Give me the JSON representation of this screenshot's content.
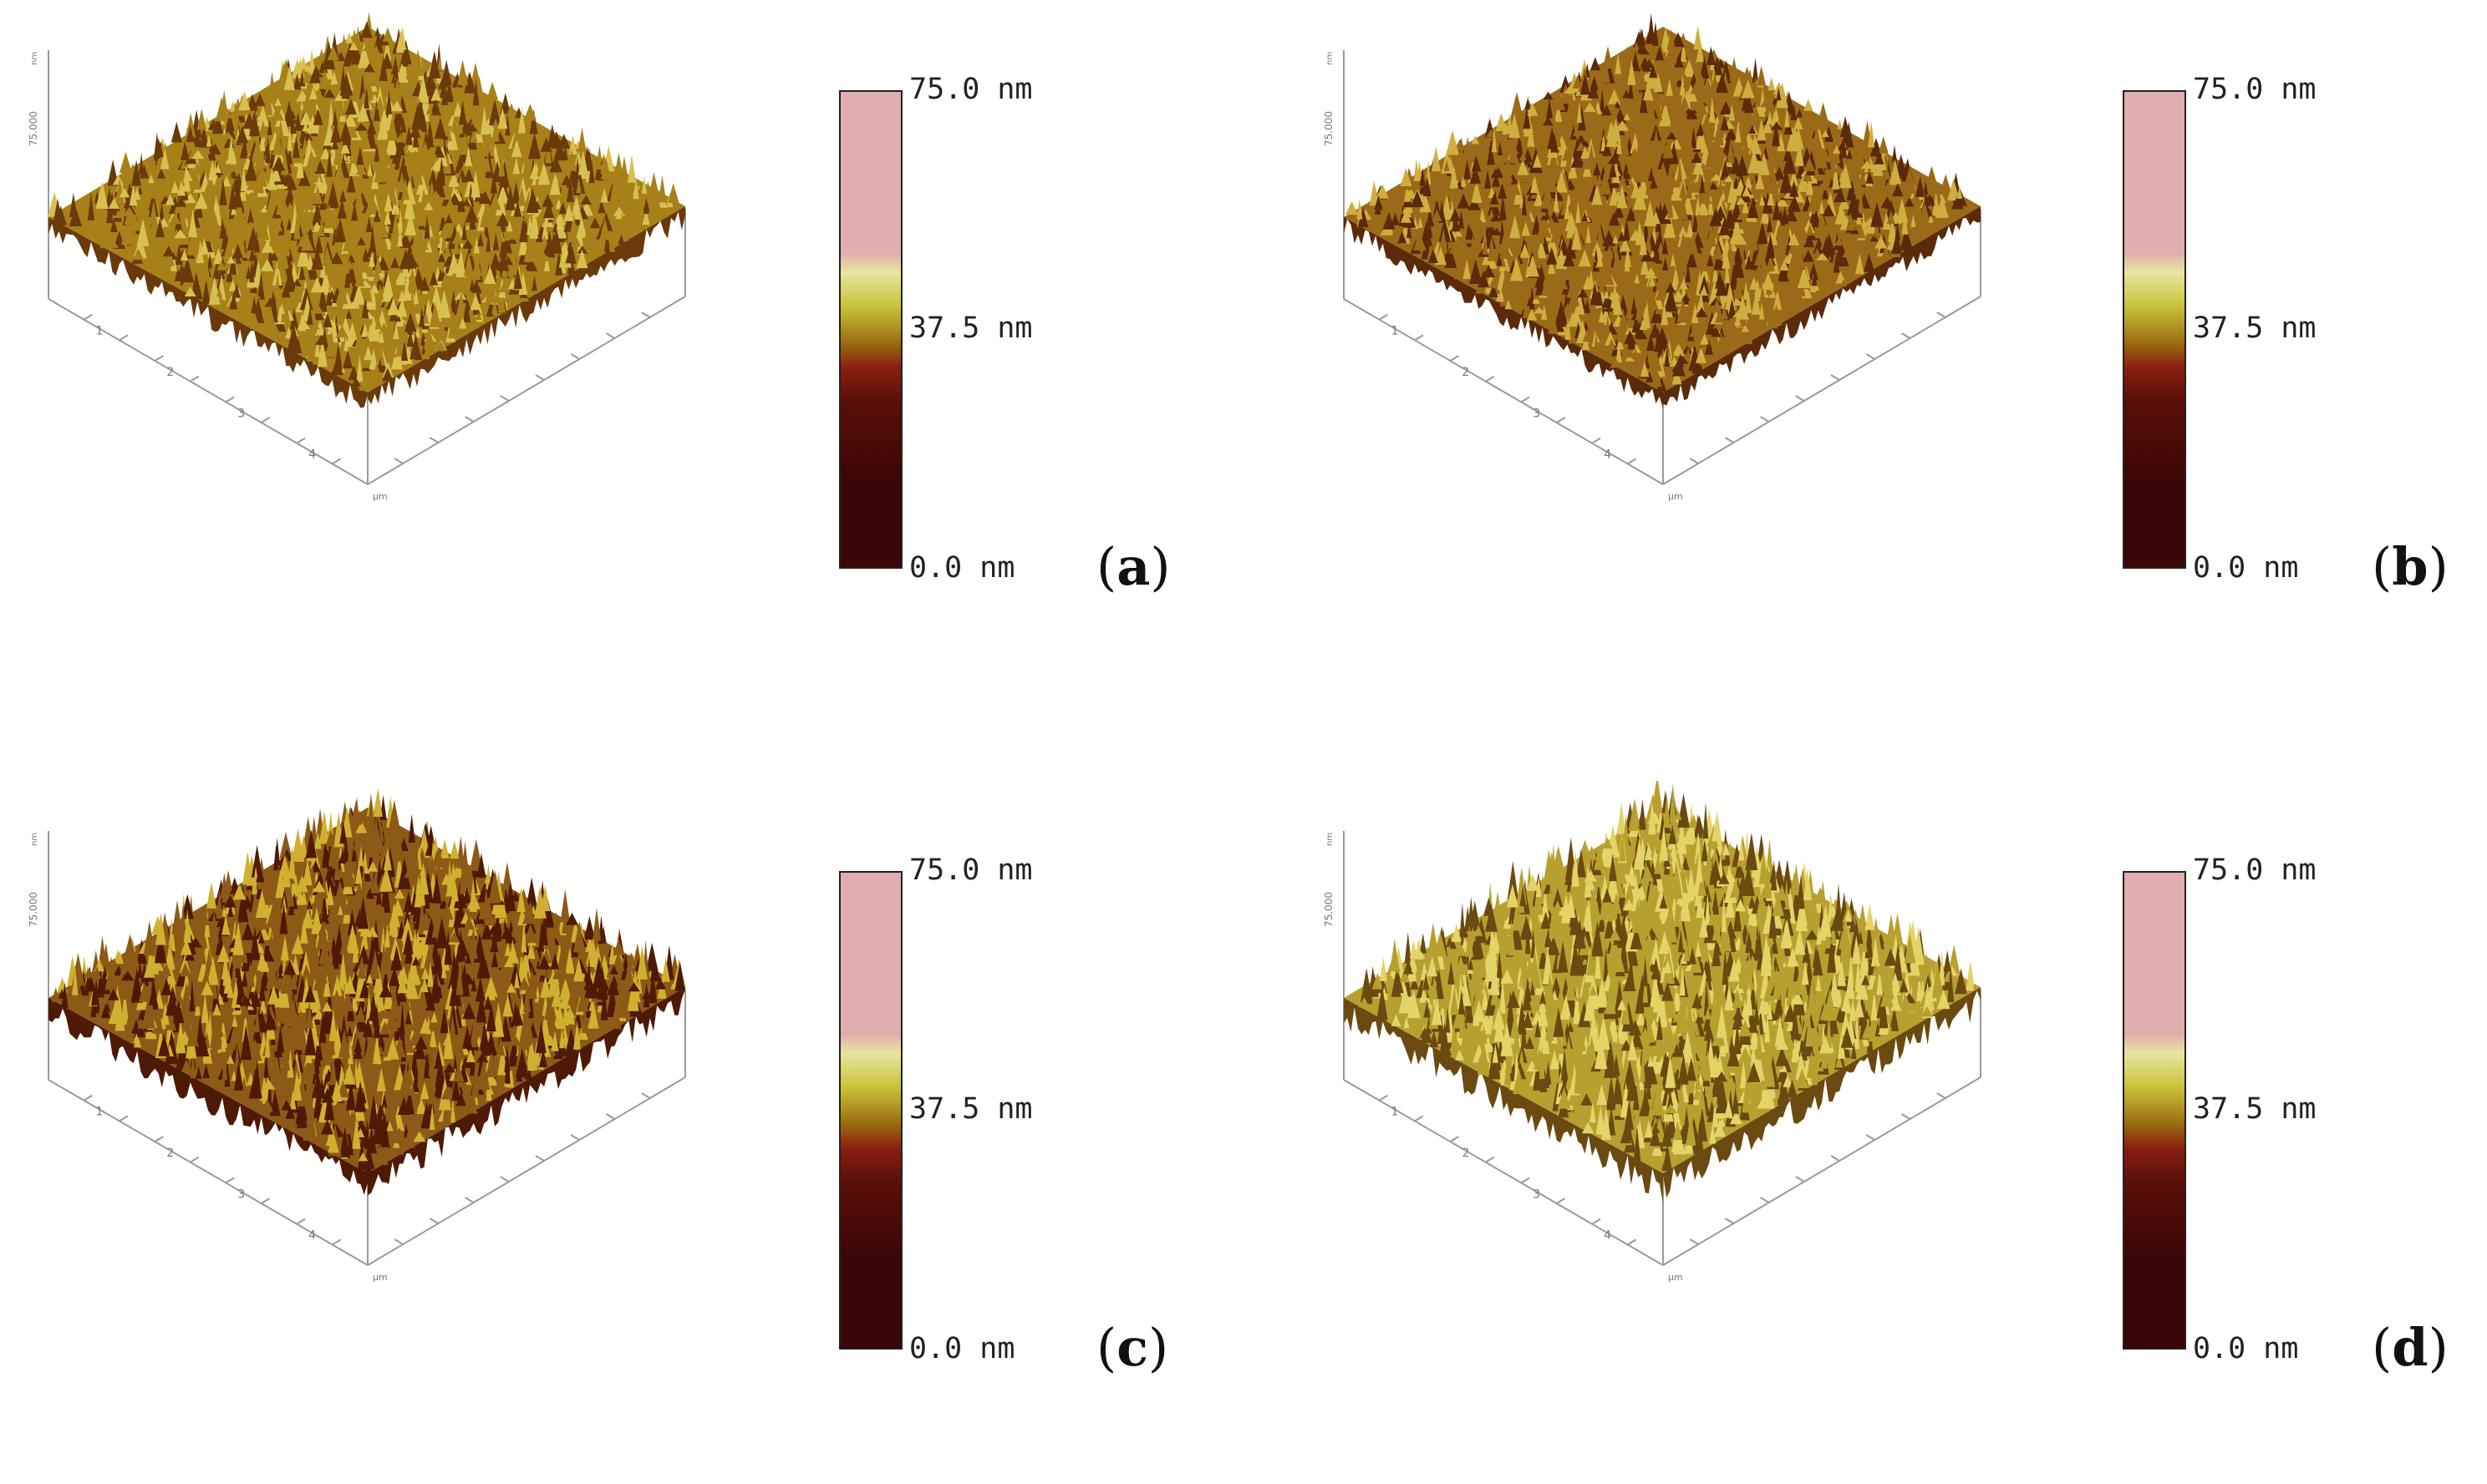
{
  "colorscale": {
    "stops": [
      "#3a0505",
      "#3a0505",
      "#5a0f0a",
      "#8a1f10",
      "#9a6a10",
      "#c9c43a",
      "#e8e6a0",
      "#e0aeae",
      "#e0aeae"
    ],
    "labels": {
      "max": "75.0 nm",
      "mid": "37.5 nm",
      "min": "0.0 nm"
    }
  },
  "axes": {
    "z_label": "75.000",
    "z_unit": "nm",
    "xy_unit": "µm",
    "ticks": [
      "1",
      "2",
      "3",
      "4"
    ]
  },
  "panels": [
    {
      "id": "a",
      "label": "a",
      "surface_color": "#a8801a",
      "shadow_color": "#6a3a0a",
      "highlight_color": "#d8c050",
      "roughness": 0.55
    },
    {
      "id": "b",
      "label": "b",
      "surface_color": "#9a6a18",
      "shadow_color": "#5a2a0a",
      "highlight_color": "#cfae40",
      "roughness": 0.45
    },
    {
      "id": "c",
      "label": "c",
      "surface_color": "#8c5a16",
      "shadow_color": "#4e1a06",
      "highlight_color": "#d0b030",
      "roughness": 0.85
    },
    {
      "id": "d",
      "label": "d",
      "surface_color": "#b8a030",
      "shadow_color": "#6a4a10",
      "highlight_color": "#e4d468",
      "roughness": 1.0
    }
  ]
}
